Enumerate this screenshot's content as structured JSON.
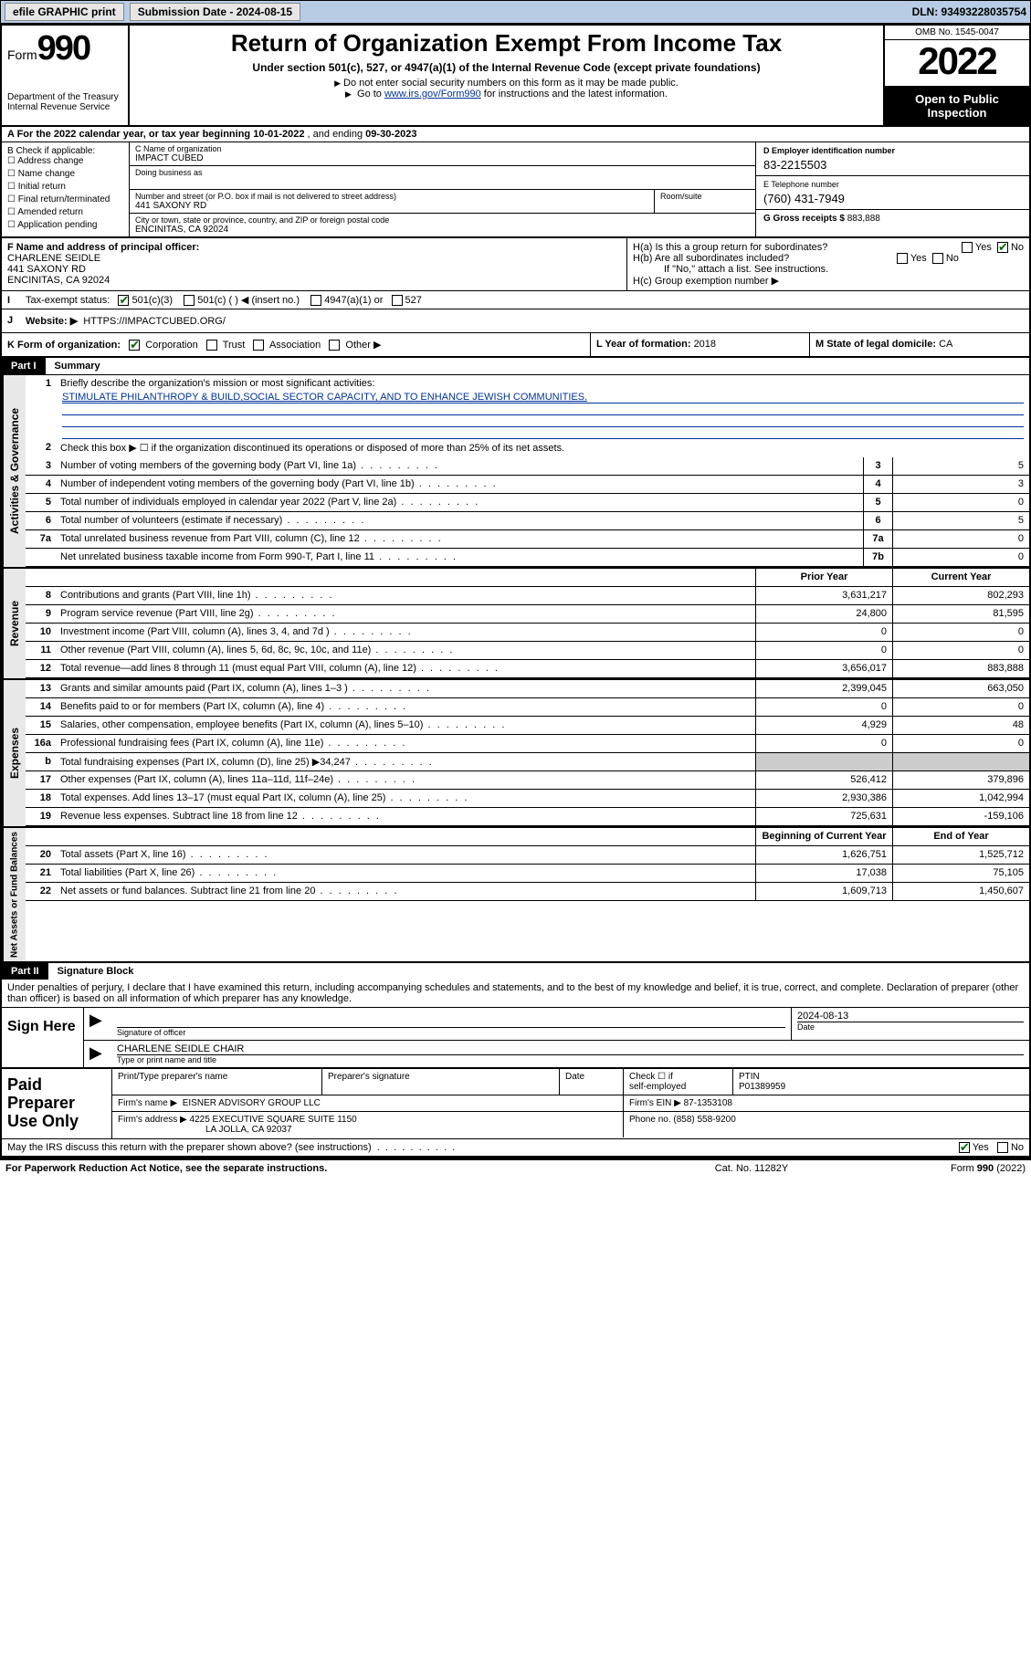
{
  "topbar": {
    "efile": "efile GRAPHIC print",
    "sub_label": "Submission Date - 2024-08-15",
    "dln": "DLN: 93493228035754"
  },
  "header": {
    "form_word": "Form",
    "form_num": "990",
    "dept": "Department of the Treasury",
    "irs": "Internal Revenue Service",
    "title": "Return of Organization Exempt From Income Tax",
    "subtitle": "Under section 501(c), 527, or 4947(a)(1) of the Internal Revenue Code (except private foundations)",
    "note1": "Do not enter social security numbers on this form as it may be made public.",
    "note2_a": "Go to ",
    "note2_link": "www.irs.gov/Form990",
    "note2_b": " for instructions and the latest information.",
    "omb": "OMB No. 1545-0047",
    "year": "2022",
    "inspection": "Open to Public Inspection"
  },
  "rowA": {
    "text_a": "A For the 2022 calendar year, or tax year beginning ",
    "begin": "10-01-2022",
    "text_b": " , and ending ",
    "end": "09-30-2023"
  },
  "B": {
    "label": "B Check if applicable:",
    "opts": [
      "Address change",
      "Name change",
      "Initial return",
      "Final return/terminated",
      "Amended return",
      "Application pending"
    ]
  },
  "C": {
    "name_label": "C Name of organization",
    "name": "IMPACT CUBED",
    "dba_label": "Doing business as",
    "addr_label": "Number and street (or P.O. box if mail is not delivered to street address)",
    "room_label": "Room/suite",
    "addr": "441 SAXONY RD",
    "city_label": "City or town, state or province, country, and ZIP or foreign postal code",
    "city": "ENCINITAS, CA  92024"
  },
  "D": {
    "label": "D Employer identification number",
    "val": "83-2215503"
  },
  "E": {
    "label": "E Telephone number",
    "val": "(760) 431-7949"
  },
  "G": {
    "label": "G Gross receipts $ ",
    "val": "883,888"
  },
  "F": {
    "label": "F Name and address of principal officer:",
    "name": "CHARLENE SEIDLE",
    "addr": "441 SAXONY RD",
    "city": "ENCINITAS, CA  92024"
  },
  "H": {
    "a": "H(a)  Is this a group return for subordinates?",
    "a_yes": "Yes",
    "a_no": "No",
    "b": "H(b)  Are all subordinates included?",
    "b_yes": "Yes",
    "b_no": "No",
    "b_note": "If \"No,\" attach a list. See instructions.",
    "c": "H(c)  Group exemption number ▶"
  },
  "I": {
    "label": "Tax-exempt status:",
    "o1": "501(c)(3)",
    "o2": "501(c) (  ) ◀ (insert no.)",
    "o3": "4947(a)(1) or",
    "o4": "527"
  },
  "J": {
    "label": "Website: ▶",
    "val": "HTTPS://IMPACTCUBED.ORG/"
  },
  "K": {
    "label": "K Form of organization:",
    "o1": "Corporation",
    "o2": "Trust",
    "o3": "Association",
    "o4": "Other ▶"
  },
  "L": {
    "label": "L Year of formation: ",
    "val": "2018"
  },
  "M": {
    "label": "M State of legal domicile: ",
    "val": "CA"
  },
  "part1": {
    "num": "Part I",
    "title": "Summary"
  },
  "summary": {
    "q1": "Briefly describe the organization's mission or most significant activities:",
    "mission": "STIMULATE PHILANTHROPY & BUILD,SOCIAL SECTOR CAPACITY, AND TO ENHANCE JEWISH COMMUNITIES.",
    "q2": "Check this box ▶ ☐  if the organization discontinued its operations or disposed of more than 25% of its net assets.",
    "rows_gov": [
      {
        "n": "3",
        "t": "Number of voting members of the governing body (Part VI, line 1a)",
        "box": "3",
        "v": "5"
      },
      {
        "n": "4",
        "t": "Number of independent voting members of the governing body (Part VI, line 1b)",
        "box": "4",
        "v": "3"
      },
      {
        "n": "5",
        "t": "Total number of individuals employed in calendar year 2022 (Part V, line 2a)",
        "box": "5",
        "v": "0"
      },
      {
        "n": "6",
        "t": "Total number of volunteers (estimate if necessary)",
        "box": "6",
        "v": "5"
      },
      {
        "n": "7a",
        "t": "Total unrelated business revenue from Part VIII, column (C), line 12",
        "box": "7a",
        "v": "0"
      },
      {
        "n": "",
        "t": "Net unrelated business taxable income from Form 990-T, Part I, line 11",
        "box": "7b",
        "v": "0"
      }
    ],
    "hdr_prior": "Prior Year",
    "hdr_curr": "Current Year",
    "rows_rev": [
      {
        "n": "8",
        "t": "Contributions and grants (Part VIII, line 1h)",
        "p": "3,631,217",
        "c": "802,293"
      },
      {
        "n": "9",
        "t": "Program service revenue (Part VIII, line 2g)",
        "p": "24,800",
        "c": "81,595"
      },
      {
        "n": "10",
        "t": "Investment income (Part VIII, column (A), lines 3, 4, and 7d )",
        "p": "0",
        "c": "0"
      },
      {
        "n": "11",
        "t": "Other revenue (Part VIII, column (A), lines 5, 6d, 8c, 9c, 10c, and 11e)",
        "p": "0",
        "c": "0"
      },
      {
        "n": "12",
        "t": "Total revenue—add lines 8 through 11 (must equal Part VIII, column (A), line 12)",
        "p": "3,656,017",
        "c": "883,888"
      }
    ],
    "rows_exp": [
      {
        "n": "13",
        "t": "Grants and similar amounts paid (Part IX, column (A), lines 1–3 )",
        "p": "2,399,045",
        "c": "663,050"
      },
      {
        "n": "14",
        "t": "Benefits paid to or for members (Part IX, column (A), line 4)",
        "p": "0",
        "c": "0"
      },
      {
        "n": "15",
        "t": "Salaries, other compensation, employee benefits (Part IX, column (A), lines 5–10)",
        "p": "4,929",
        "c": "48"
      },
      {
        "n": "16a",
        "t": "Professional fundraising fees (Part IX, column (A), line 11e)",
        "p": "0",
        "c": "0"
      },
      {
        "n": "b",
        "t": "Total fundraising expenses (Part IX, column (D), line 25) ▶34,247",
        "p": "",
        "c": "",
        "grey": true
      },
      {
        "n": "17",
        "t": "Other expenses (Part IX, column (A), lines 11a–11d, 11f–24e)",
        "p": "526,412",
        "c": "379,896"
      },
      {
        "n": "18",
        "t": "Total expenses. Add lines 13–17 (must equal Part IX, column (A), line 25)",
        "p": "2,930,386",
        "c": "1,042,994"
      },
      {
        "n": "19",
        "t": "Revenue less expenses. Subtract line 18 from line 12",
        "p": "725,631",
        "c": "-159,106"
      }
    ],
    "hdr_beg": "Beginning of Current Year",
    "hdr_end": "End of Year",
    "rows_net": [
      {
        "n": "20",
        "t": "Total assets (Part X, line 16)",
        "p": "1,626,751",
        "c": "1,525,712"
      },
      {
        "n": "21",
        "t": "Total liabilities (Part X, line 26)",
        "p": "17,038",
        "c": "75,105"
      },
      {
        "n": "22",
        "t": "Net assets or fund balances. Subtract line 21 from line 20",
        "p": "1,609,713",
        "c": "1,450,607"
      }
    ]
  },
  "part2": {
    "num": "Part II",
    "title": "Signature Block"
  },
  "sig": {
    "decl": "Under penalties of perjury, I declare that I have examined this return, including accompanying schedules and statements, and to the best of my knowledge and belief, it is true, correct, and complete. Declaration of preparer (other than officer) is based on all information of which preparer has any knowledge.",
    "sign_here": "Sign Here",
    "sig_officer": "Signature of officer",
    "date_lbl": "Date",
    "date": "2024-08-13",
    "name_title": "CHARLENE SEIDLE  CHAIR",
    "type_lbl": "Type or print name and title"
  },
  "prep": {
    "title": "Paid Preparer Use Only",
    "h1": "Print/Type preparer's name",
    "h2": "Preparer's signature",
    "h3": "Date",
    "h4a": "Check ☐ if",
    "h4b": "self-employed",
    "h5": "PTIN",
    "ptin": "P01389959",
    "firm_lbl": "Firm's name      ▶",
    "firm": "EISNER ADVISORY GROUP LLC",
    "ein_lbl": "Firm's EIN ▶ ",
    "ein": "87-1353108",
    "addr_lbl": "Firm's address  ▶",
    "addr1": "4225 EXECUTIVE SQUARE SUITE 1150",
    "addr2": "LA JOLLA, CA  92037",
    "phone_lbl": "Phone no. ",
    "phone": "(858) 558-9200",
    "irs_q": "May the IRS discuss this return with the preparer shown above? (see instructions)",
    "yes": "Yes",
    "no": "No"
  },
  "footer": {
    "l": "For Paperwork Reduction Act Notice, see the separate instructions.",
    "m": "Cat. No. 11282Y",
    "r": "Form 990 (2022)"
  },
  "colors": {
    "topbar_bg": "#b8cce4",
    "link": "#003399",
    "check": "#006600",
    "vtab_bg": "#e8e8e8",
    "grey_cell": "#cccccc"
  }
}
